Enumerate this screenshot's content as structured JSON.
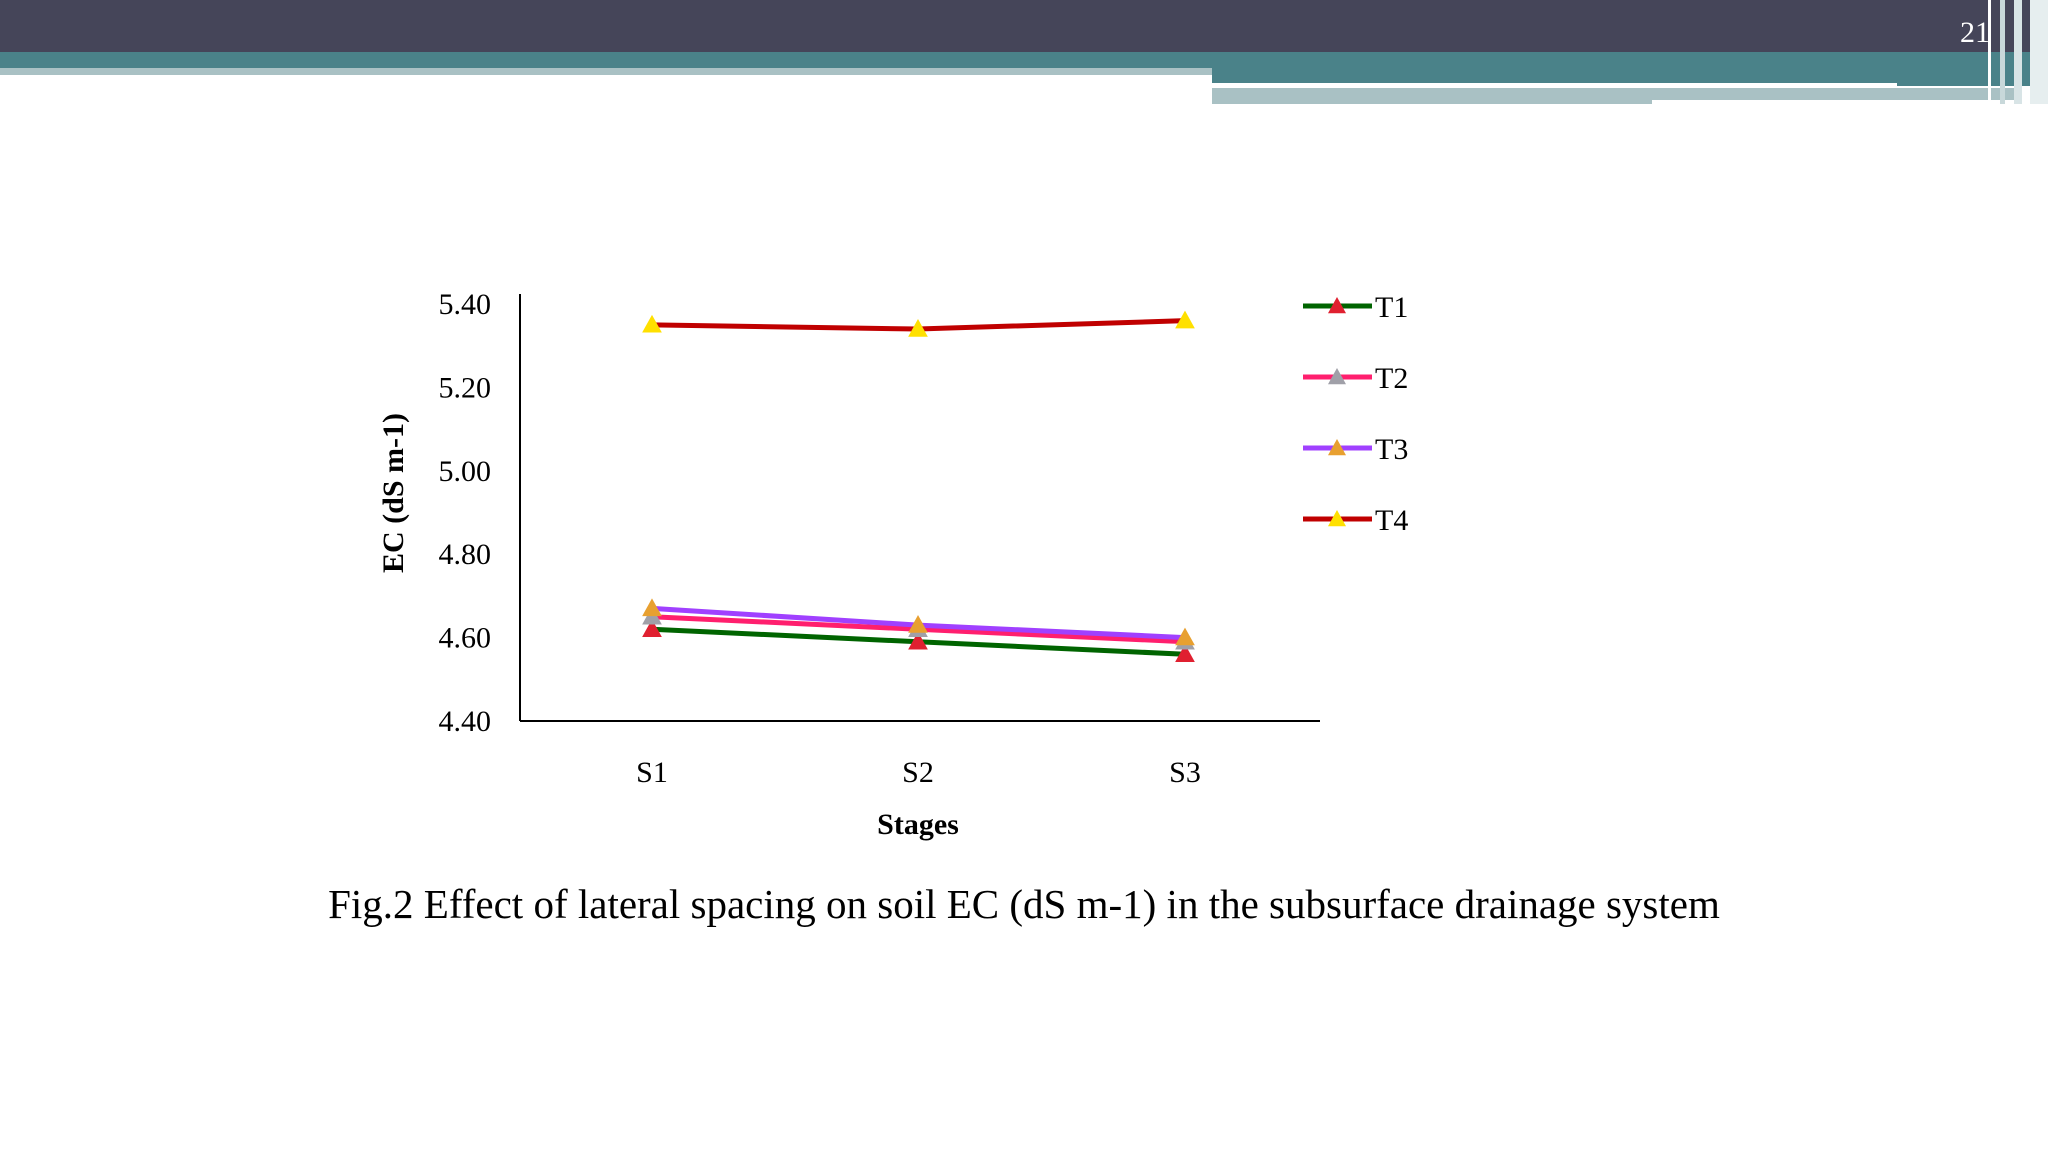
{
  "slide": {
    "number": "21",
    "caption": "Fig.2 Effect of lateral spacing on soil EC (dS m-1) in the subsurface drainage system"
  },
  "colors": {
    "header_dark": "#454559",
    "header_teal": "#4a8289",
    "header_light": "#a9c1c4",
    "axis": "#000000"
  },
  "chart_data": {
    "type": "line",
    "title": "",
    "xlabel": "Stages",
    "ylabel": "EC (dS m-1)",
    "categories": [
      "S1",
      "S2",
      "S3"
    ],
    "ylim": [
      4.4,
      5.4
    ],
    "yticks": [
      "4.40",
      "4.60",
      "4.80",
      "5.00",
      "5.20",
      "5.40"
    ],
    "grid": false,
    "legend_position": "right",
    "series": [
      {
        "name": "T1",
        "values": [
          4.62,
          4.59,
          4.56
        ],
        "color": "#006400",
        "marker_color": "#e02030"
      },
      {
        "name": "T2",
        "values": [
          4.65,
          4.62,
          4.59
        ],
        "color": "#ff1f6e",
        "marker_color": "#a0a0a8"
      },
      {
        "name": "T3",
        "values": [
          4.67,
          4.63,
          4.6
        ],
        "color": "#a040ff",
        "marker_color": "#e8a030"
      },
      {
        "name": "T4",
        "values": [
          5.35,
          5.34,
          5.36
        ],
        "color": "#c00000",
        "marker_color": "#ffe000"
      }
    ]
  }
}
